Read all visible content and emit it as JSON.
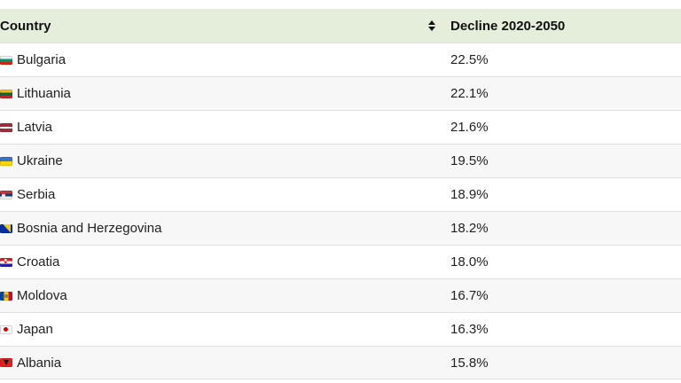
{
  "table": {
    "header": {
      "country_label": "Country",
      "decline_label": "Decline 2020-2050",
      "sort_icon": "sort-up-down-icon"
    },
    "rows": [
      {
        "country": "Bulgaria",
        "decline": "22.5%",
        "flag": "bg",
        "flag_icon": "bulgaria-flag-icon"
      },
      {
        "country": "Lithuania",
        "decline": "22.1%",
        "flag": "lt",
        "flag_icon": "lithuania-flag-icon"
      },
      {
        "country": "Latvia",
        "decline": "21.6%",
        "flag": "lv",
        "flag_icon": "latvia-flag-icon"
      },
      {
        "country": "Ukraine",
        "decline": "19.5%",
        "flag": "ua",
        "flag_icon": "ukraine-flag-icon"
      },
      {
        "country": "Serbia",
        "decline": "18.9%",
        "flag": "rs",
        "flag_icon": "serbia-flag-icon"
      },
      {
        "country": "Bosnia and Herzegovina",
        "decline": "18.2%",
        "flag": "ba",
        "flag_icon": "bosnia-and-herzegovina-flag-icon"
      },
      {
        "country": "Croatia",
        "decline": "18.0%",
        "flag": "hr",
        "flag_icon": "croatia-flag-icon"
      },
      {
        "country": "Moldova",
        "decline": "16.7%",
        "flag": "md",
        "flag_icon": "moldova-flag-icon"
      },
      {
        "country": "Japan",
        "decline": "16.3%",
        "flag": "jp",
        "flag_icon": "japan-flag-icon"
      },
      {
        "country": "Albania",
        "decline": "15.8%",
        "flag": "al",
        "flag_icon": "albania-flag-icon"
      }
    ],
    "colors": {
      "header_bg": "#e4eedb",
      "row_alt_bg": "#f7f7f7",
      "divider": "#e0e0e0",
      "text": "#212121"
    }
  }
}
